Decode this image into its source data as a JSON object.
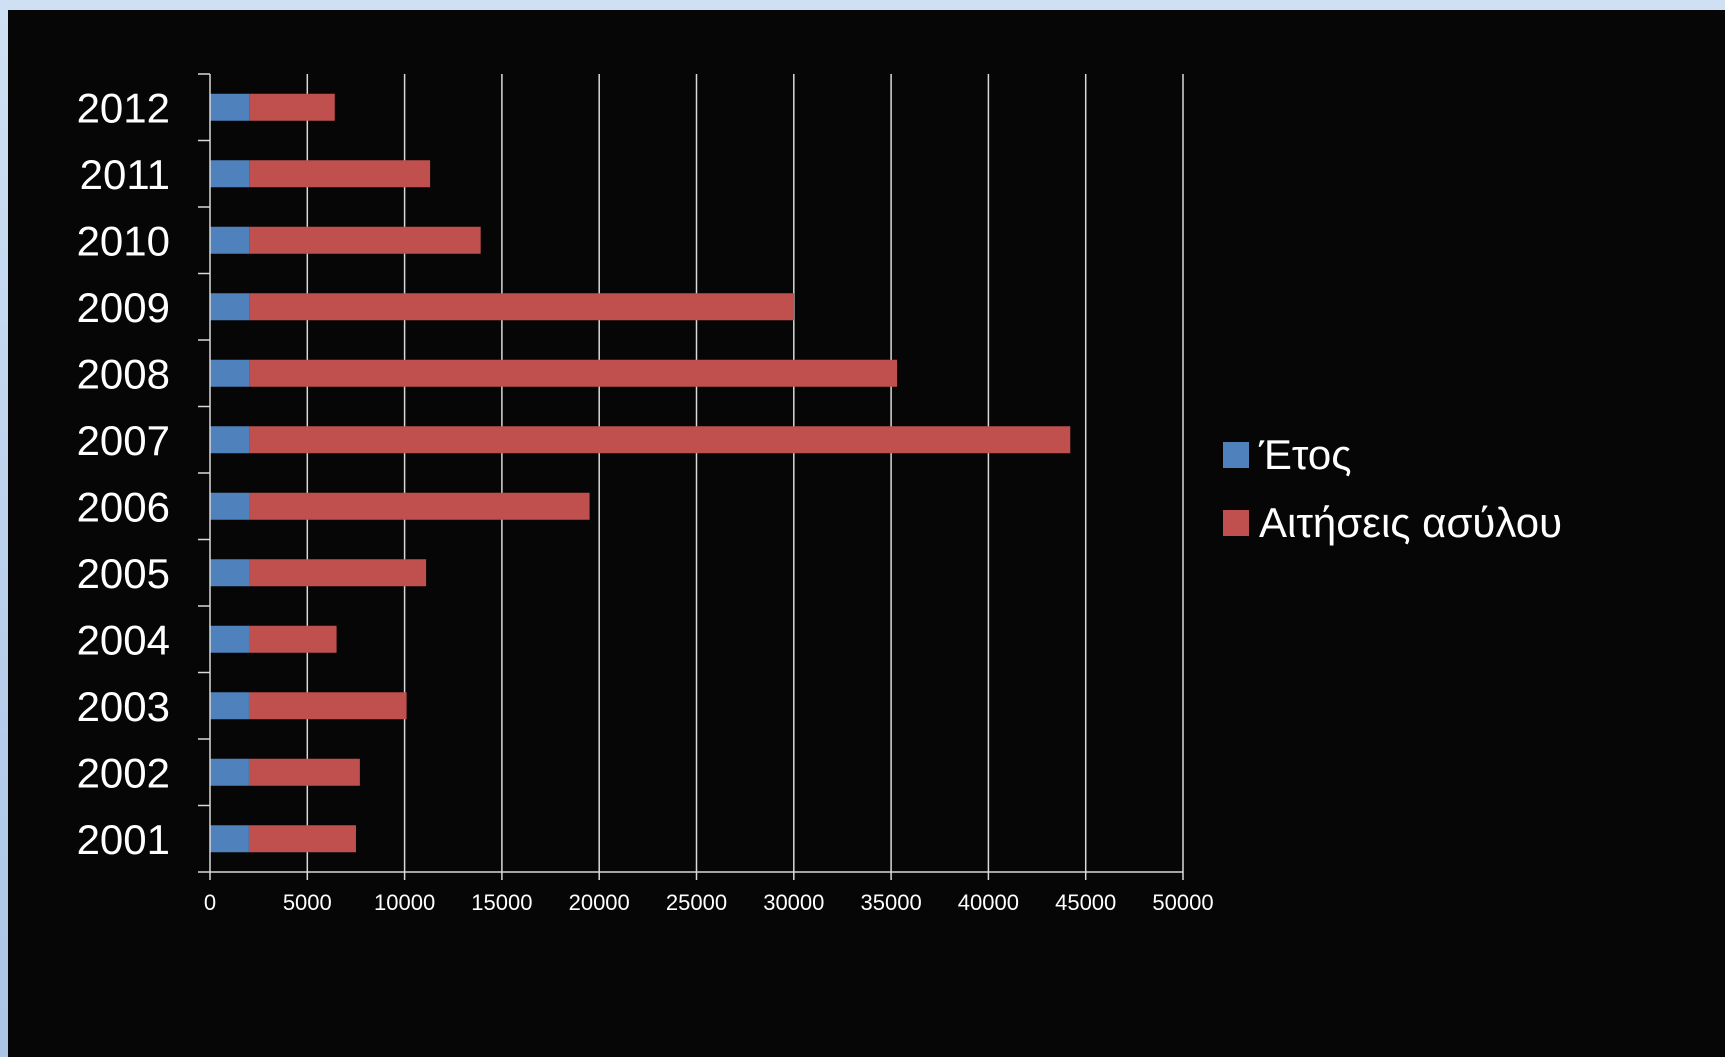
{
  "chart_data": {
    "type": "bar",
    "orientation": "horizontal",
    "stacked": true,
    "categories": [
      "2012",
      "2011",
      "2010",
      "2009",
      "2008",
      "2007",
      "2006",
      "2005",
      "2004",
      "2003",
      "2002",
      "2001"
    ],
    "series": [
      {
        "name": "Έτος",
        "color": "#4f81bd",
        "values": [
          2012,
          2011,
          2010,
          2009,
          2008,
          2007,
          2006,
          2005,
          2004,
          2003,
          2002,
          2001
        ]
      },
      {
        "name": "Αιτήσεις ασύλου",
        "color": "#c0504d",
        "values": [
          4400,
          9300,
          11900,
          28000,
          33300,
          42200,
          17500,
          9100,
          4500,
          8100,
          5700,
          5500
        ]
      }
    ],
    "xlim": [
      0,
      50000
    ],
    "xticks": [
      "0",
      "5000",
      "10000",
      "15000",
      "20000",
      "25000",
      "30000",
      "35000",
      "40000",
      "45000",
      "50000"
    ],
    "grid": "vertical",
    "legend": "right"
  }
}
